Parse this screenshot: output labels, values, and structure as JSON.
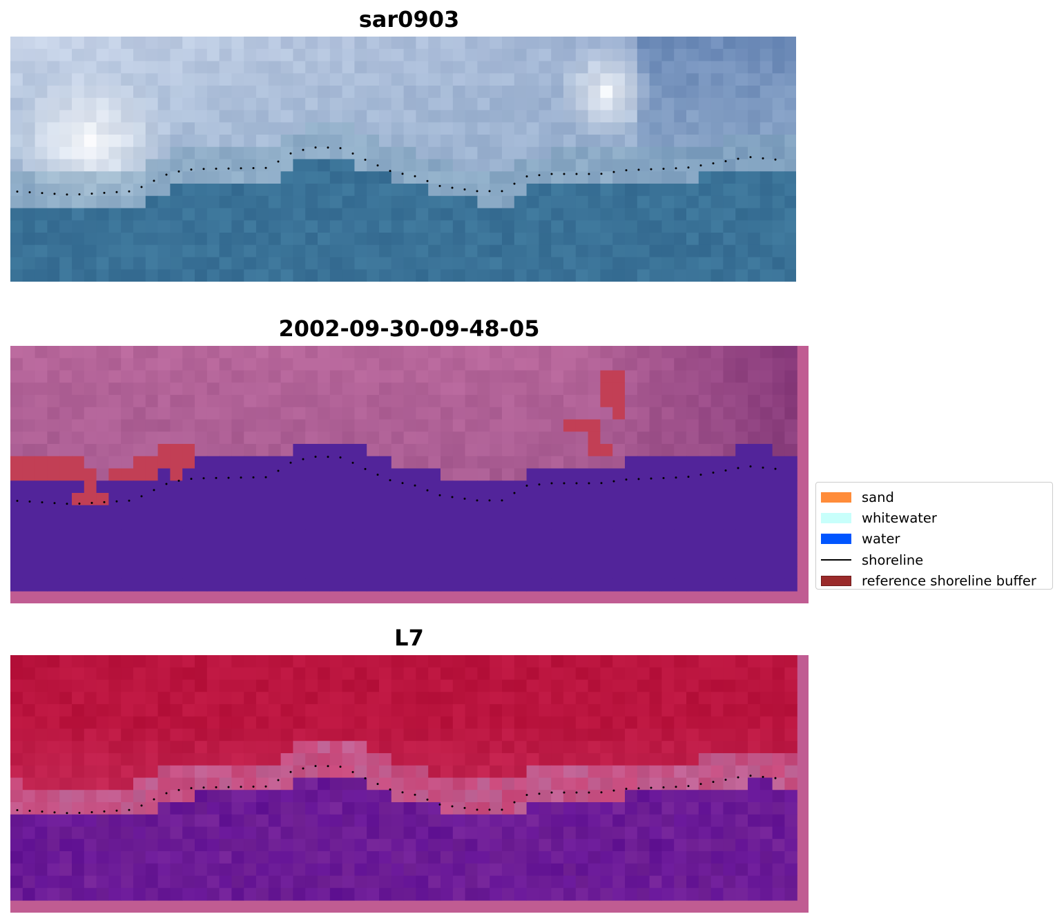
{
  "panels": [
    {
      "title": "sar0903",
      "kind": "rgb"
    },
    {
      "title": "2002-09-30-09-48-05",
      "kind": "classified"
    },
    {
      "title": "L7",
      "kind": "index"
    }
  ],
  "legend": {
    "items": [
      {
        "label": "sand",
        "type": "patch",
        "color": "#ff8c3a"
      },
      {
        "label": "whitewater",
        "type": "patch",
        "color": "#c8fffb"
      },
      {
        "label": "water",
        "type": "patch",
        "color": "#0055ff"
      },
      {
        "label": "shoreline",
        "type": "line",
        "color": "#000000"
      },
      {
        "label": "reference shoreline buffer",
        "type": "patch",
        "color": "#9a2a2a"
      }
    ]
  },
  "colors": {
    "water_class": "#52249a",
    "land_overlay": "#a85595",
    "buffer": "#c23f55",
    "index_land": "#c0113e",
    "index_water": "#6d1c97",
    "frame_pink": "#c05c92",
    "sea_rgb": "#3a7297"
  }
}
